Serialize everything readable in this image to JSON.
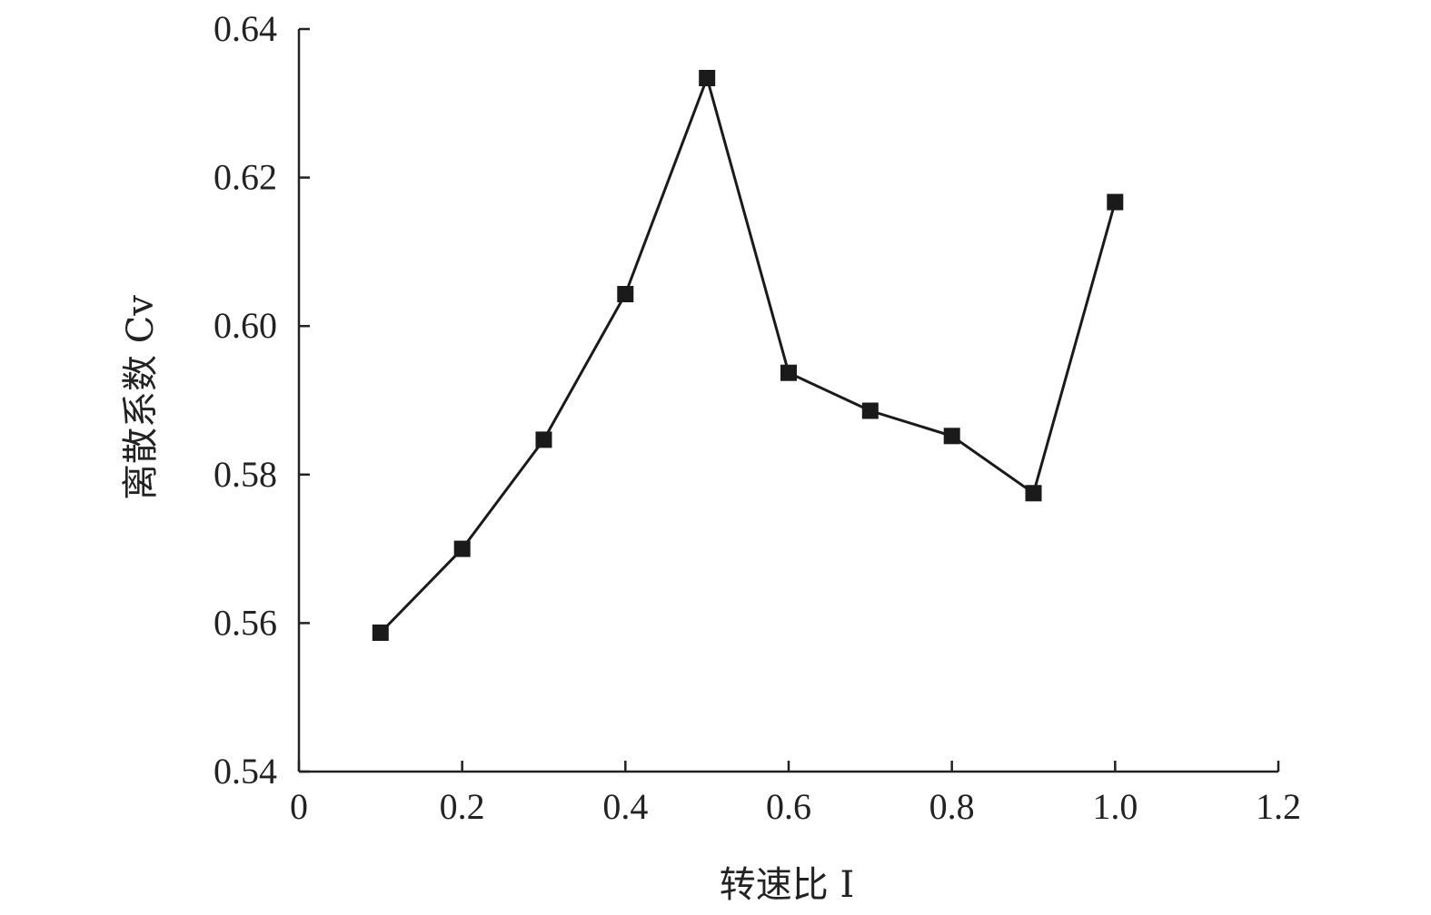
{
  "chart_data": {
    "type": "line",
    "xlabel": "转速比 I",
    "ylabel": "离散系数 Cv",
    "x": [
      0.1,
      0.2,
      0.3,
      0.4,
      0.5,
      0.6,
      0.7,
      0.8,
      0.9,
      1.0
    ],
    "series": [
      {
        "values": [
          0.5587,
          0.57,
          0.5847,
          0.6043,
          0.6334,
          0.5937,
          0.5886,
          0.5852,
          0.5775,
          0.6167
        ]
      }
    ],
    "xlim": [
      0,
      1.2
    ],
    "ylim": [
      0.54,
      0.64
    ],
    "x_ticks": [
      "0",
      "0.2",
      "0.4",
      "0.6",
      "0.8",
      "1.0",
      "1.2"
    ],
    "y_ticks": [
      "0.54",
      "0.56",
      "0.58",
      "0.60",
      "0.62",
      "0.64"
    ],
    "grid": false,
    "marker": "square",
    "line_color": "#1a1a1a",
    "marker_color": "#1a1a1a"
  }
}
